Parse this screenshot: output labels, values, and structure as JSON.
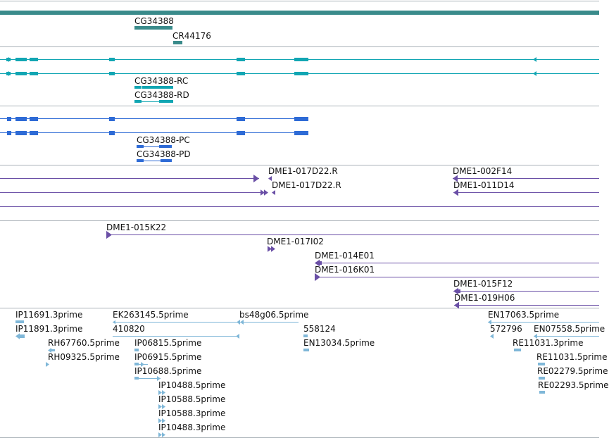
{
  "colors": {
    "gene": "#3a8b8b",
    "transcript": "#12a6b3",
    "protein": "#2e6bd6",
    "clone": "#6a4fa6",
    "est": "#7fb7d8",
    "divider": "#aab2b8"
  },
  "tracks": {
    "genes": {
      "items": [
        {
          "id": "g1",
          "label": "CG34388"
        },
        {
          "id": "g2",
          "label": "CR44176"
        }
      ]
    },
    "transcripts": {
      "items": [
        {
          "id": "t1",
          "label": "CG34388-RC"
        },
        {
          "id": "t2",
          "label": "CG34388-RD"
        }
      ]
    },
    "proteins": {
      "items": [
        {
          "id": "p1",
          "label": "CG34388-PC"
        },
        {
          "id": "p2",
          "label": "CG34388-PD"
        }
      ]
    },
    "clones_a": {
      "items": [
        {
          "id": "ca1",
          "label": "DME1-017D22.R"
        },
        {
          "id": "ca2",
          "label": "DME1-017D22.R"
        },
        {
          "id": "ca3",
          "label": "DME1-002F14"
        },
        {
          "id": "ca4",
          "label": "DME1-011D14"
        }
      ]
    },
    "clones_b": {
      "items": [
        {
          "id": "cb1",
          "label": "DME1-015K22"
        },
        {
          "id": "cb2",
          "label": "DME1-017I02"
        },
        {
          "id": "cb3",
          "label": "DME1-014E01"
        },
        {
          "id": "cb4",
          "label": "DME1-016K01"
        },
        {
          "id": "cb5",
          "label": "DME1-015F12"
        },
        {
          "id": "cb6",
          "label": "DME1-019H06"
        }
      ]
    },
    "ests": {
      "items": [
        {
          "id": "e1",
          "label": "IP11691.3prime"
        },
        {
          "id": "e2",
          "label": "IP11891.3prime"
        },
        {
          "id": "e3",
          "label": "RH67760.5prime"
        },
        {
          "id": "e4",
          "label": "RH09325.5prime"
        },
        {
          "id": "e5",
          "label": "EK263145.5prime"
        },
        {
          "id": "e6",
          "label": "410820"
        },
        {
          "id": "e7",
          "label": "IP06815.5prime"
        },
        {
          "id": "e8",
          "label": "IP06915.5prime"
        },
        {
          "id": "e9",
          "label": "IP10688.5prime"
        },
        {
          "id": "e10",
          "label": "IP10488.5prime"
        },
        {
          "id": "e11",
          "label": "IP10588.5prime"
        },
        {
          "id": "e12",
          "label": "IP10588.3prime"
        },
        {
          "id": "e13",
          "label": "IP10488.3prime"
        },
        {
          "id": "e14",
          "label": "bs48g06.5prime"
        },
        {
          "id": "e15",
          "label": "558124"
        },
        {
          "id": "e16",
          "label": "EN13034.5prime"
        },
        {
          "id": "e17",
          "label": "EN17063.5prime"
        },
        {
          "id": "e18",
          "label": "572796"
        },
        {
          "id": "e19",
          "label": "EN07558.5prime"
        },
        {
          "id": "e20",
          "label": "RE11031.3prime"
        },
        {
          "id": "e21",
          "label": "RE11031.5prime"
        },
        {
          "id": "e22",
          "label": "RE02279.5prime"
        },
        {
          "id": "e23",
          "label": "RE02293.5prime"
        }
      ]
    }
  }
}
